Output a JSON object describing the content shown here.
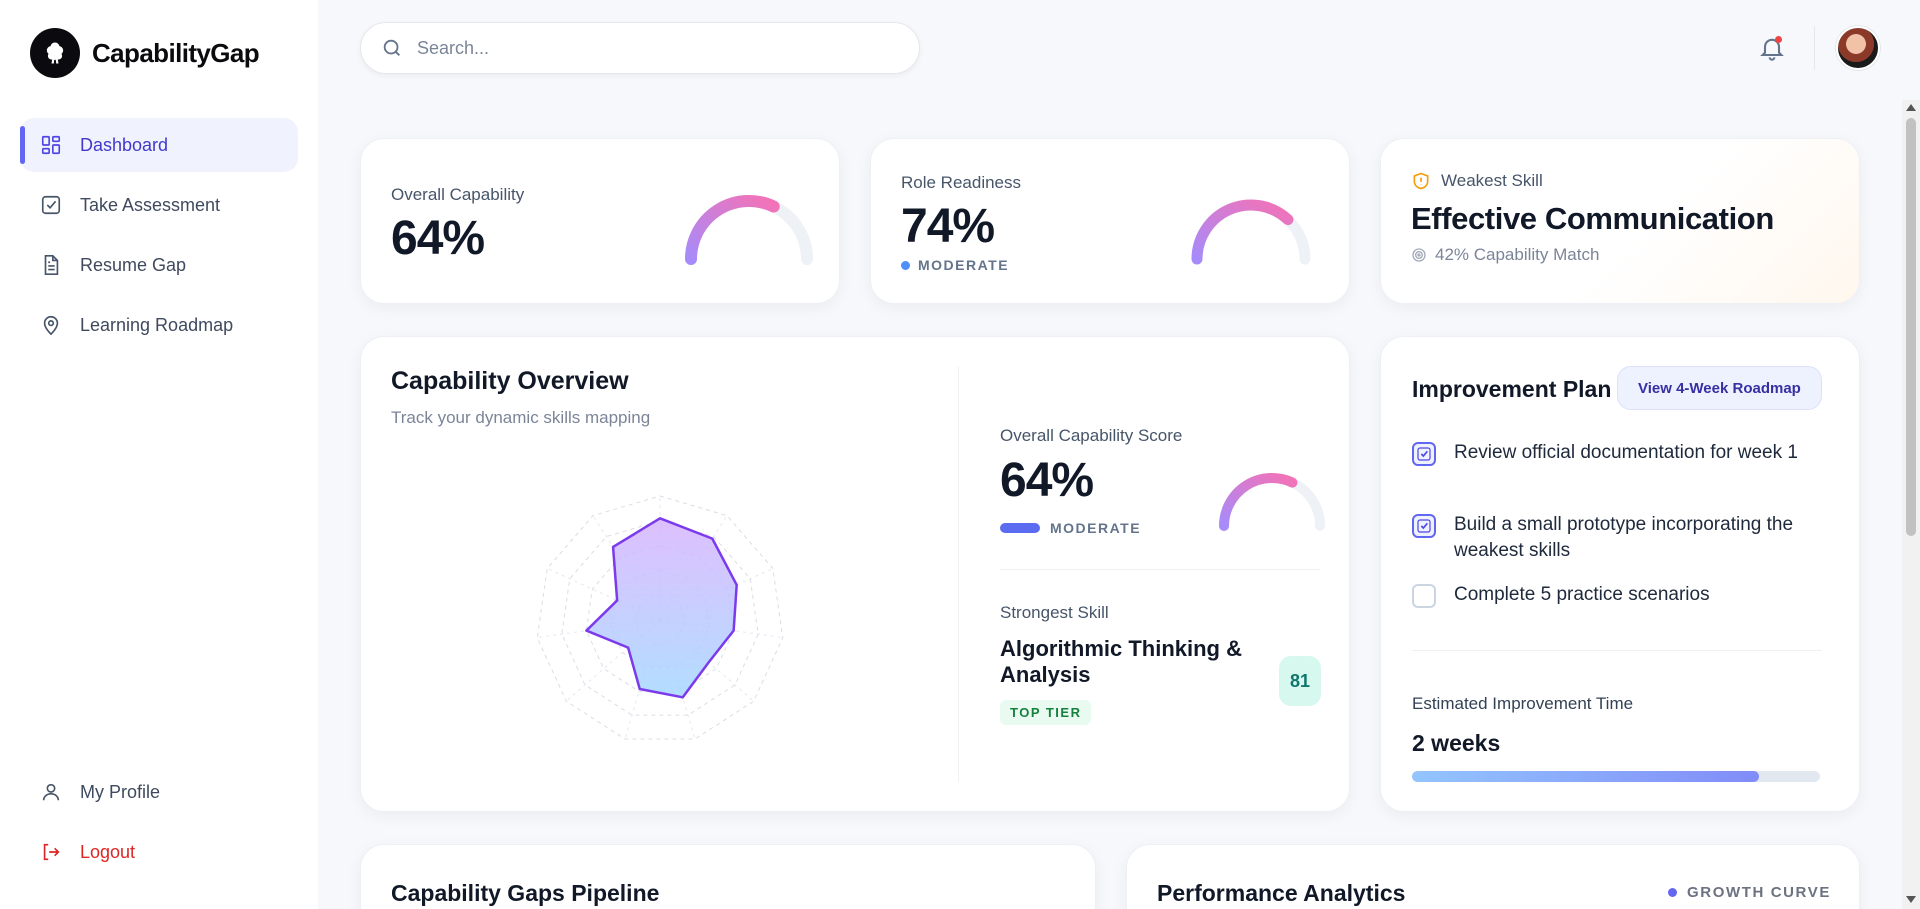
{
  "app": {
    "name": "CapabilityGap"
  },
  "nav": {
    "items": [
      {
        "label": "Dashboard",
        "icon": "dashboard-grid-icon",
        "active": true
      },
      {
        "label": "Take Assessment",
        "icon": "checkbox-icon"
      },
      {
        "label": "Resume Gap",
        "icon": "document-icon"
      },
      {
        "label": "Learning Roadmap",
        "icon": "map-pin-icon"
      }
    ],
    "bottom": [
      {
        "label": "My Profile",
        "icon": "user-icon"
      },
      {
        "label": "Logout",
        "icon": "logout-icon"
      }
    ]
  },
  "search": {
    "placeholder": "Search..."
  },
  "stats": {
    "overall": {
      "label": "Overall Capability",
      "value": "64%",
      "gauge": 0.64
    },
    "readiness": {
      "label": "Role Readiness",
      "value": "74%",
      "tier": "MODERATE",
      "gauge": 0.74
    },
    "weakest": {
      "label": "Weakest Skill",
      "skill": "Effective Communication",
      "match": "42% Capability Match"
    }
  },
  "overview": {
    "title": "Capability Overview",
    "subtitle": "Track your dynamic skills mapping",
    "radar": {
      "axes": 11,
      "max": 100,
      "values": [
        82,
        78,
        68,
        60,
        52,
        65,
        58,
        34,
        60,
        38,
        70
      ]
    },
    "score": {
      "label": "Overall Capability Score",
      "value": "64%",
      "tier": "MODERATE",
      "gauge": 0.64
    },
    "strongest": {
      "label": "Strongest Skill",
      "skill": "Algorithmic Thinking & Analysis",
      "badge": "TOP TIER",
      "score": "81"
    }
  },
  "plan": {
    "title": "Improvement Plan",
    "button": "View 4-Week Roadmap",
    "tasks": [
      {
        "text": "Review official documentation for week 1",
        "done": true
      },
      {
        "text": "Build a small prototype incorporating the weakest skills",
        "done": true
      },
      {
        "text": "Complete 5 practice scenarios",
        "done": false
      }
    ],
    "estimate_label": "Estimated Improvement Time",
    "estimate_value": "2 weeks",
    "progress": 0.85
  },
  "bottom": {
    "pipeline_title": "Capability Gaps Pipeline",
    "analytics_title": "Performance Analytics",
    "analytics_legend": "GROWTH CURVE"
  },
  "colors": {
    "accent": "#6366f1",
    "gauge_start": "#a78bfa",
    "gauge_end": "#f472b6",
    "danger": "#dc2626",
    "success": "#15803d"
  }
}
